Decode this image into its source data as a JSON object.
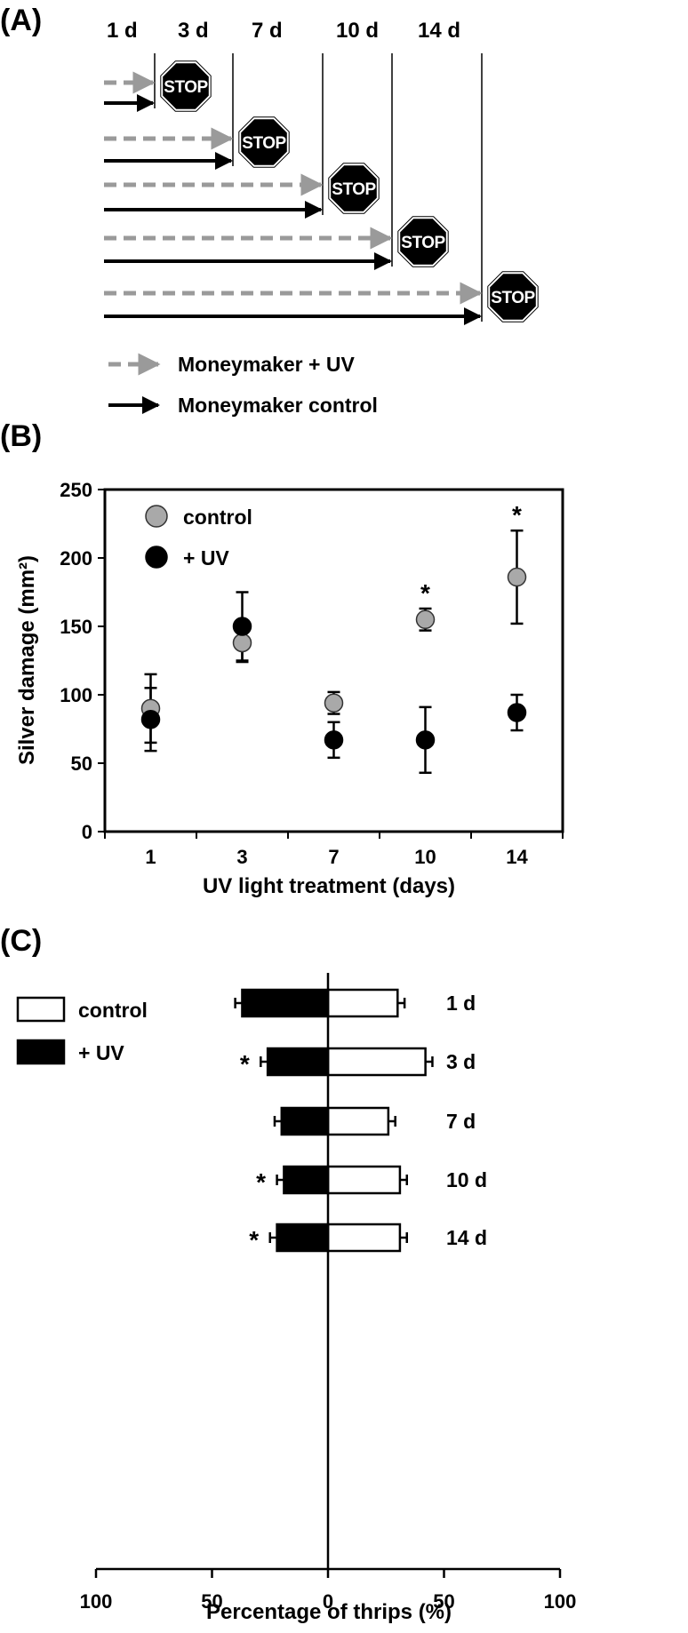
{
  "panel_a": {
    "label": "(A)",
    "headers": [
      "1 d",
      "3 d",
      "7 d",
      "10 d",
      "14 d"
    ],
    "stop_text": "STOP",
    "legend": [
      {
        "label": "Moneymaker + UV",
        "style": "dashed",
        "color": "#9a9a9a"
      },
      {
        "label": "Moneymaker control",
        "style": "solid",
        "color": "#000000"
      }
    ]
  },
  "chart_data": [
    {
      "type": "scatter",
      "panel_label": "(B)",
      "title": "",
      "xlabel": "UV light treatment (days)",
      "ylabel": "Silver damage (mm²)",
      "categories": [
        "1",
        "3",
        "7",
        "10",
        "14"
      ],
      "ylim": [
        0,
        250
      ],
      "yticks": [
        0,
        50,
        100,
        150,
        200,
        250
      ],
      "legend_position": "top-left",
      "series": [
        {
          "name": "control",
          "color": "#a9a9a9",
          "values": [
            90,
            138,
            94,
            155,
            186
          ],
          "errors": [
            25,
            14,
            8,
            8,
            34
          ]
        },
        {
          "name": "+ UV",
          "color": "#000000",
          "values": [
            82,
            150,
            67,
            67,
            87
          ],
          "errors": [
            23,
            25,
            13,
            24,
            13
          ]
        }
      ],
      "annotations": [
        {
          "category": "10",
          "text": "*"
        },
        {
          "category": "14",
          "text": "*"
        }
      ]
    },
    {
      "type": "bar",
      "orientation": "horizontal-diverging",
      "panel_label": "(C)",
      "title": "",
      "xlabel": "Percentage of thrips (%)",
      "ylabel": "",
      "categories": [
        "1 d",
        "3 d",
        "7 d",
        "10 d",
        "14 d"
      ],
      "xlim": [
        -100,
        100
      ],
      "xticks": [
        100,
        50,
        0,
        50,
        100
      ],
      "legend_position": "top-left",
      "series": [
        {
          "name": "control",
          "color": "#ffffff",
          "side": "right",
          "values": [
            30,
            42,
            26,
            31,
            31
          ],
          "errors": [
            3,
            3,
            3,
            3,
            3
          ]
        },
        {
          "name": "+ UV",
          "color": "#000000",
          "side": "left",
          "values": [
            37,
            26,
            20,
            19,
            22
          ],
          "errors": [
            3,
            3,
            3,
            3,
            3
          ]
        }
      ],
      "annotations": [
        {
          "category": "3 d",
          "text": "*"
        },
        {
          "category": "10 d",
          "text": "*"
        },
        {
          "category": "14 d",
          "text": "*"
        }
      ]
    }
  ]
}
